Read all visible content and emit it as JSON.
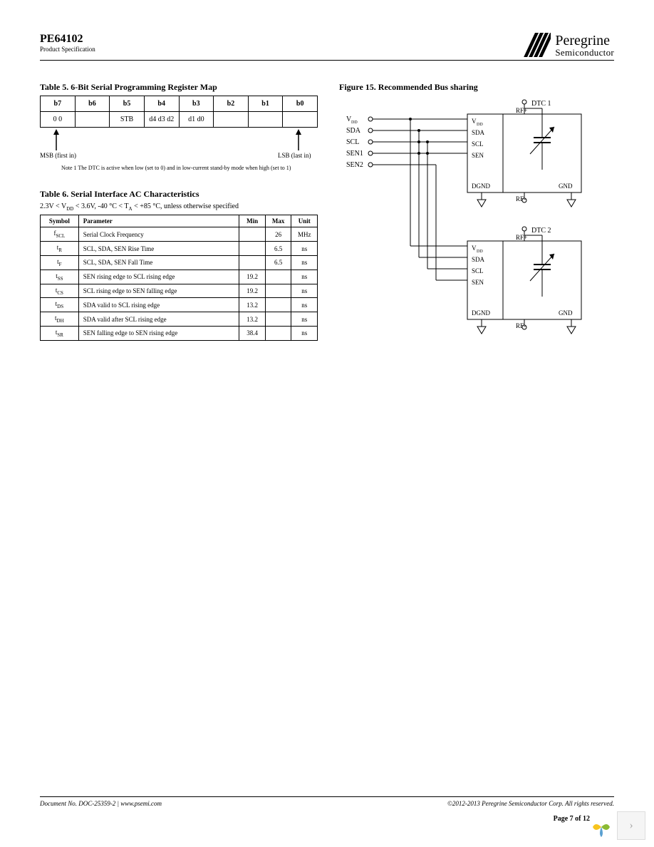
{
  "header": {
    "part_number": "PE64102",
    "spec_label": "Product Specification",
    "brand_top": "Peregrine",
    "brand_bot": "Semiconductor"
  },
  "table5": {
    "caption": "Table 5. 6-Bit Serial Programming  Register Map",
    "headers": [
      "b7",
      "b6",
      "b5",
      "b4",
      "b3",
      "b2",
      "b1",
      "b0"
    ],
    "row": [
      "0 0",
      "",
      "STB",
      "d4 d3 d2",
      "d1 d0",
      "",
      "",
      ""
    ],
    "msb_label": "MSB (first in)",
    "lsb_label": "LSB (last in)",
    "note": "Note 1   The DTC is active when low (set to 0) and in low-current stand-by mode when high (set to 1)"
  },
  "table6": {
    "caption": "Table 6. Serial Interface AC Characteristics",
    "condition_pre": "2.3V < V",
    "condition_mid": " < 3.6V, -40 °C < T",
    "condition_post": " < +85 °C, unless otherwise specified",
    "headers": [
      "Symbol",
      "Parameter",
      "Min",
      "Max",
      "Unit"
    ],
    "rows": [
      {
        "sym": "f",
        "sub": "SCL",
        "param": "Serial Clock Frequency",
        "min": "",
        "max": "26",
        "unit": "MHz"
      },
      {
        "sym": "t",
        "sub": "R",
        "param": "SCL, SDA, SEN Rise Time",
        "min": "",
        "max": "6.5",
        "unit": "ns"
      },
      {
        "sym": "t",
        "sub": "F",
        "param": "SCL, SDA, SEN Fall Time",
        "min": "",
        "max": "6.5",
        "unit": "ns"
      },
      {
        "sym": "t",
        "sub": "SS",
        "param": "SEN rising edge to SCL rising edge",
        "min": "19.2",
        "max": "",
        "unit": "ns"
      },
      {
        "sym": "t",
        "sub": "CS",
        "param": "SCL rising edge to SEN falling edge",
        "min": "19.2",
        "max": "",
        "unit": "ns"
      },
      {
        "sym": "t",
        "sub": "DS",
        "param": "SDA valid to SCL rising edge",
        "min": "13.2",
        "max": "",
        "unit": "ns"
      },
      {
        "sym": "t",
        "sub": "DH",
        "param": "SDA valid after SCL rising edge",
        "min": "13.2",
        "max": "",
        "unit": "ns"
      },
      {
        "sym": "t",
        "sub": "SR",
        "param": "SEN falling edge to SEN rising edge",
        "min": "38.4",
        "max": "",
        "unit": "ns"
      }
    ]
  },
  "figure15": {
    "caption": "Figure 15. Recommended Bus sharing",
    "signals": [
      "V",
      "SDA",
      "SCL",
      "SEN1",
      "SEN2"
    ],
    "block_labels": {
      "dtc1": "DTC 1",
      "dtc2": "DTC 2",
      "rf_plus": "RF+",
      "rf_minus": "RF-",
      "vdd": "V",
      "sda": "SDA",
      "scl": "SCL",
      "sen": "SEN",
      "dgnd": "DGND",
      "gnd": "GND"
    }
  },
  "footer": {
    "doc": "Document No. DOC-25359-2   | www.psemi.com",
    "copyright": "©2012-2013 Peregrine Semiconductor Corp. All rights reserved.",
    "page": "Page 7 of 12"
  },
  "colors": {
    "text": "#000000",
    "bg": "#ffffff",
    "border": "#000000",
    "nav_bg": "#f5f5f5",
    "nav_border": "#dddddd",
    "nav_arrow": "#aaaaaa",
    "logo_a": "#f7c41f",
    "logo_b": "#8bba34",
    "logo_c": "#5aa0d1"
  }
}
